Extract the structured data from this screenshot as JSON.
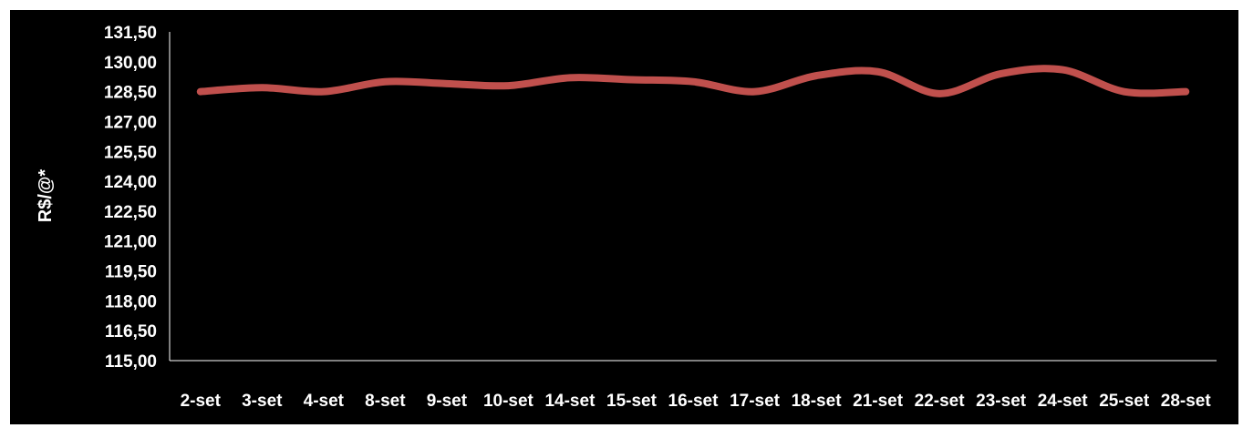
{
  "chart_data": {
    "type": "line",
    "title": "",
    "xlabel": "",
    "ylabel": "R$/@*",
    "ylim": [
      115,
      131.5
    ],
    "y_ticks": [
      "115,00",
      "116,50",
      "118,00",
      "119,50",
      "121,00",
      "122,50",
      "124,00",
      "125,50",
      "127,00",
      "128,50",
      "130,00",
      "131,50"
    ],
    "categories": [
      "2-set",
      "3-set",
      "4-set",
      "8-set",
      "9-set",
      "10-set",
      "14-set",
      "15-set",
      "16-set",
      "17-set",
      "18-set",
      "21-set",
      "22-set",
      "23-set",
      "24-set",
      "25-set",
      "28-set"
    ],
    "series": [
      {
        "values": [
          128.5,
          128.7,
          128.5,
          129.0,
          128.9,
          128.8,
          129.2,
          129.1,
          129.0,
          128.5,
          129.3,
          129.5,
          128.4,
          129.4,
          129.6,
          128.5,
          128.5
        ],
        "color": "#c0504d"
      }
    ],
    "grid": false,
    "legend": "none",
    "background": "#000000"
  }
}
